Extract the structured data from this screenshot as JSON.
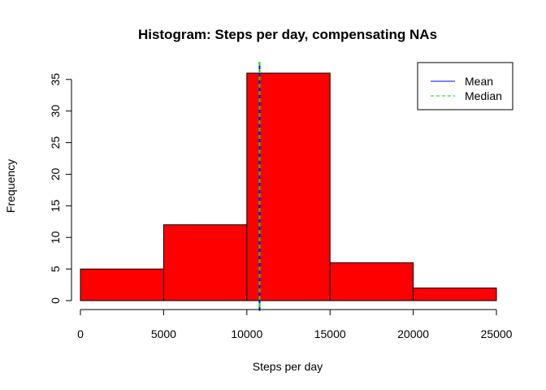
{
  "chart_data": {
    "type": "bar",
    "title": "Histogram: Steps per day, compensating NAs",
    "xlabel": "Steps per day",
    "ylabel": "Frequency",
    "bins": [
      {
        "from": 0,
        "to": 5000,
        "count": 5
      },
      {
        "from": 5000,
        "to": 10000,
        "count": 12
      },
      {
        "from": 10000,
        "to": 15000,
        "count": 36
      },
      {
        "from": 15000,
        "to": 20000,
        "count": 6
      },
      {
        "from": 20000,
        "to": 25000,
        "count": 2
      }
    ],
    "xlim": [
      0,
      25000
    ],
    "ylim": [
      0,
      36
    ],
    "x_ticks": [
      0,
      5000,
      10000,
      15000,
      20000,
      25000
    ],
    "y_ticks": [
      0,
      5,
      10,
      15,
      20,
      25,
      30,
      35
    ],
    "bar_color": "#ff0000",
    "grid": false,
    "legend_position": "top-right",
    "reference_lines": [
      {
        "name": "Mean",
        "value": 10766,
        "color": "#0000ff",
        "style": "solid"
      },
      {
        "name": "Median",
        "value": 10766,
        "color": "#00e000",
        "style": "dashed"
      }
    ]
  }
}
